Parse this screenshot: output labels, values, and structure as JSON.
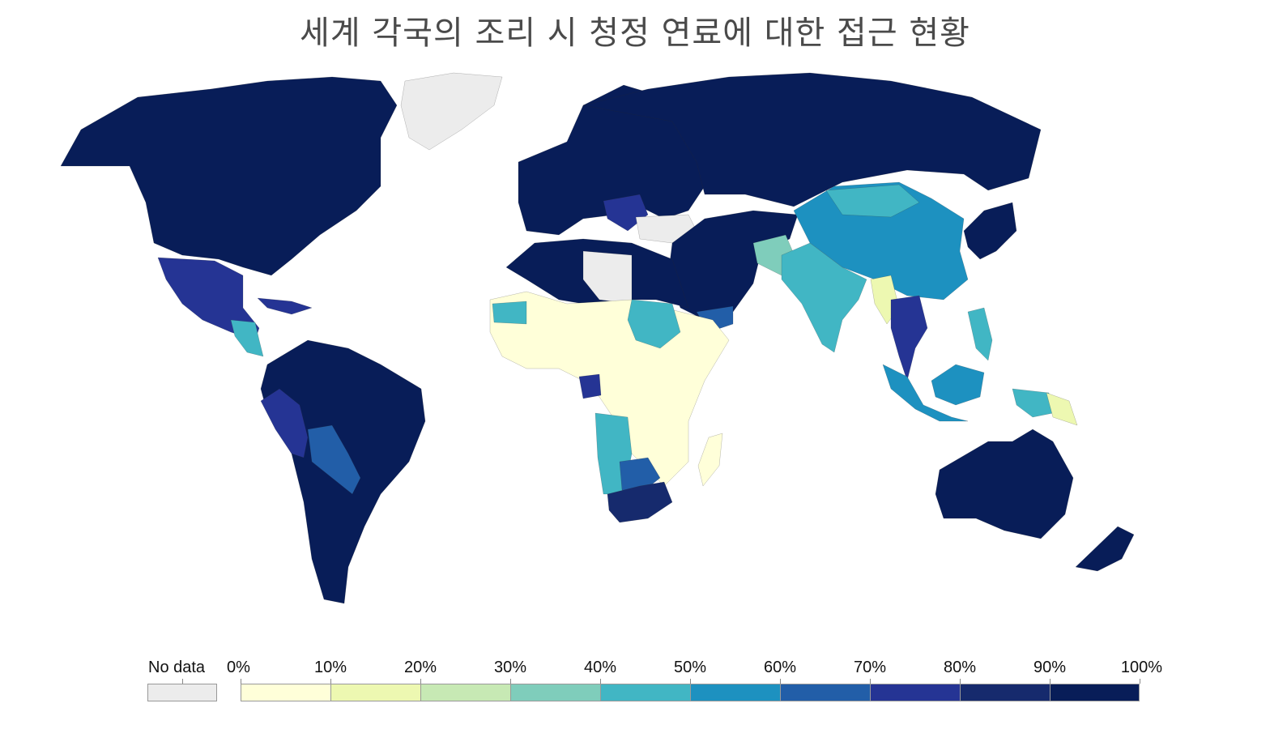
{
  "title": "세계 각국의 조리 시 청정 연료에 대한 접근 현황",
  "legend": {
    "no_data_label": "No data",
    "no_data_color": "#ececec",
    "thresholds": [
      "0%",
      "10%",
      "20%",
      "30%",
      "40%",
      "50%",
      "60%",
      "70%",
      "80%",
      "90%",
      "100%"
    ],
    "colors": [
      "#ffffd9",
      "#edf8b1",
      "#c7e9b4",
      "#7fcdbb",
      "#41b6c4",
      "#1d91c0",
      "#225ea8",
      "#253494",
      "#162a6d",
      "#081d58"
    ]
  },
  "map": {
    "ocean_color": "#ffffff",
    "border_color": "#2a2a2a"
  }
}
